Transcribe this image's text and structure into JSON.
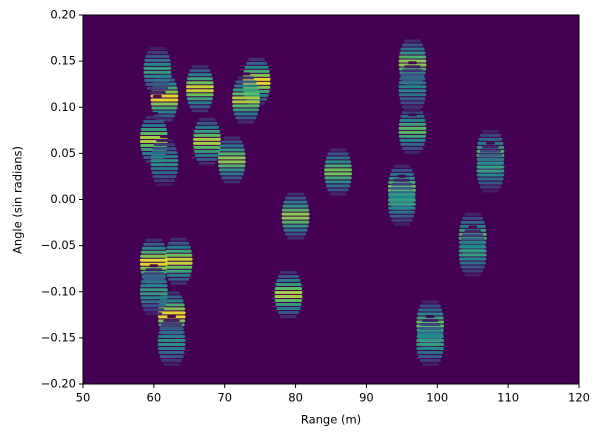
{
  "chart_data": {
    "type": "heatmap",
    "xlabel": "Range (m)",
    "ylabel": "Angle (sin radians)",
    "xlim": [
      50,
      120
    ],
    "ylim": [
      -0.2,
      0.2
    ],
    "xticks": [
      50,
      60,
      70,
      80,
      90,
      100,
      110,
      120
    ],
    "yticks": [
      {
        "value": -0.2,
        "label": "−0.20"
      },
      {
        "value": -0.15,
        "label": "−0.15"
      },
      {
        "value": -0.1,
        "label": "−0.10"
      },
      {
        "value": -0.05,
        "label": "−0.05"
      },
      {
        "value": 0,
        "label": "0.00"
      },
      {
        "value": 0.05,
        "label": "0.05"
      },
      {
        "value": 0.1,
        "label": "0.10"
      },
      {
        "value": 0.15,
        "label": "0.15"
      },
      {
        "value": 0.2,
        "label": "0.20"
      }
    ],
    "background": "#440154",
    "x": [
      61.5,
      60,
      60.5,
      66.5,
      67.5,
      71,
      74.5,
      73,
      60,
      63.5,
      62.5,
      79,
      80,
      86,
      95,
      96.5,
      96.5,
      95,
      99,
      105,
      107.5,
      60,
      62.5,
      99,
      105,
      107.5,
      96.5,
      61.5
    ],
    "y": [
      0.11,
      0.065,
      0.14,
      0.12,
      0.063,
      0.043,
      0.128,
      0.108,
      -0.068,
      -0.067,
      -0.125,
      -0.103,
      -0.018,
      0.03,
      0.012,
      0.148,
      0.075,
      -0.003,
      -0.135,
      -0.04,
      0.05,
      -0.1,
      -0.155,
      -0.155,
      -0.058,
      0.033,
      0.12,
      0.04
    ],
    "values": [
      1.0,
      0.9,
      0.6,
      0.95,
      0.9,
      0.85,
      1.0,
      0.9,
      1.0,
      0.95,
      1.0,
      0.9,
      0.85,
      0.8,
      0.8,
      0.85,
      0.75,
      0.6,
      0.75,
      0.7,
      0.7,
      0.6,
      0.55,
      0.6,
      0.6,
      0.6,
      0.5,
      0.55
    ]
  }
}
